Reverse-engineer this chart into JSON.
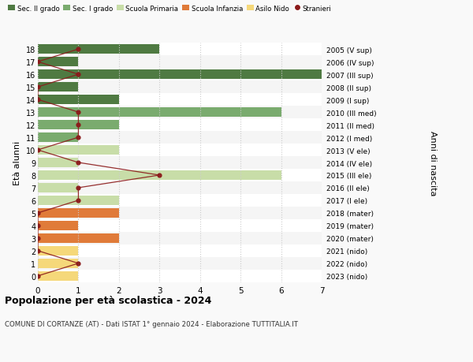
{
  "ages": [
    18,
    17,
    16,
    15,
    14,
    13,
    12,
    11,
    10,
    9,
    8,
    7,
    6,
    5,
    4,
    3,
    2,
    1,
    0
  ],
  "right_labels": [
    "2005 (V sup)",
    "2006 (IV sup)",
    "2007 (III sup)",
    "2008 (II sup)",
    "2009 (I sup)",
    "2010 (III med)",
    "2011 (II med)",
    "2012 (I med)",
    "2013 (V ele)",
    "2014 (IV ele)",
    "2015 (III ele)",
    "2016 (II ele)",
    "2017 (I ele)",
    "2018 (mater)",
    "2019 (mater)",
    "2020 (mater)",
    "2021 (nido)",
    "2022 (nido)",
    "2023 (nido)"
  ],
  "bar_values": [
    3,
    1,
    7,
    1,
    2,
    6,
    2,
    1,
    2,
    1,
    6,
    1,
    2,
    2,
    1,
    2,
    1,
    1,
    1
  ],
  "bar_colors": [
    "#4f7a42",
    "#4f7a42",
    "#4f7a42",
    "#4f7a42",
    "#4f7a42",
    "#7aab6e",
    "#7aab6e",
    "#7aab6e",
    "#c8dda8",
    "#c8dda8",
    "#c8dda8",
    "#c8dda8",
    "#c8dda8",
    "#e07b39",
    "#e07b39",
    "#e07b39",
    "#f5d87a",
    "#f5d87a",
    "#f5d87a"
  ],
  "stranieri_values": [
    1,
    0,
    1,
    0,
    0,
    1,
    1,
    1,
    0,
    1,
    3,
    1,
    1,
    0,
    0,
    0,
    0,
    1,
    0
  ],
  "legend_labels": [
    "Sec. II grado",
    "Sec. I grado",
    "Scuola Primaria",
    "Scuola Infanzia",
    "Asilo Nido",
    "Stranieri"
  ],
  "legend_colors": [
    "#4f7a42",
    "#7aab6e",
    "#c8dda8",
    "#e07b39",
    "#f5d87a",
    "#8b1a1a"
  ],
  "title_bold": "Popolazione per età scolastica - 2024",
  "subtitle": "COMUNE DI CORTANZE (AT) - Dati ISTAT 1° gennaio 2024 - Elaborazione TUTTITALIA.IT",
  "ylabel": "Età alunni",
  "ylabel_right": "Anni di nascita",
  "xlim": [
    0,
    7
  ],
  "ylim": [
    -0.5,
    18.5
  ],
  "bg_color": "#f9f9f9",
  "plot_bg_color": "#ffffff",
  "grid_color": "#cccccc"
}
